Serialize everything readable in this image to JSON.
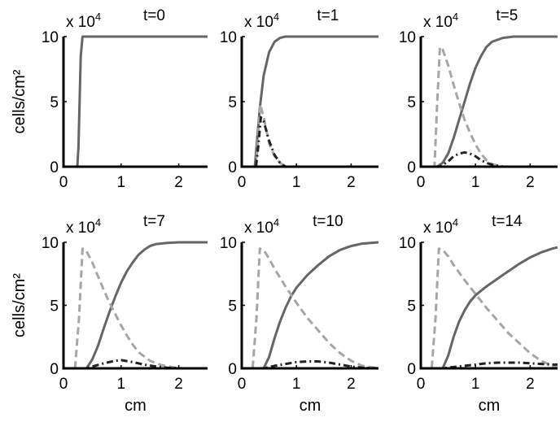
{
  "chart_data": [
    {
      "type": "line",
      "title": "t=0",
      "xlabel": "",
      "ylabel": "cells/cm²",
      "xlim": [
        0,
        2.5
      ],
      "ylim": [
        0,
        10
      ],
      "y_multiplier": "x 10^4",
      "xticks": [
        0,
        1,
        2
      ],
      "yticks": [
        0,
        5,
        10
      ],
      "series": [
        {
          "style": "solid",
          "color": "#666666",
          "x": [
            0,
            0.24,
            0.26,
            0.28,
            0.3,
            0.33,
            0.5,
            1,
            2,
            2.5
          ],
          "y": [
            0,
            0,
            1.5,
            5,
            8.5,
            10,
            10,
            10,
            10,
            10
          ]
        },
        {
          "style": "dashed",
          "color": "#a6a6a6",
          "x": [
            0,
            2.5
          ],
          "y": [
            0,
            0
          ]
        },
        {
          "style": "dashdot",
          "color": "#222222",
          "x": [
            0,
            2.5
          ],
          "y": [
            0,
            0
          ]
        }
      ]
    },
    {
      "type": "line",
      "title": "t=1",
      "xlabel": "",
      "ylabel": "",
      "xlim": [
        0,
        2.5
      ],
      "ylim": [
        0,
        10
      ],
      "y_multiplier": "x 10^4",
      "xticks": [
        0,
        1,
        2
      ],
      "yticks": [
        0,
        5,
        10
      ],
      "series": [
        {
          "style": "solid",
          "color": "#666666",
          "x": [
            0,
            0.24,
            0.28,
            0.33,
            0.4,
            0.5,
            0.6,
            0.7,
            0.8,
            1,
            2,
            2.5
          ],
          "y": [
            0,
            0,
            2,
            4.5,
            7,
            8.8,
            9.6,
            9.9,
            10,
            10,
            10,
            10
          ]
        },
        {
          "style": "dashed",
          "color": "#a6a6a6",
          "x": [
            0,
            0.26,
            0.3,
            0.34,
            0.4,
            0.5,
            0.6,
            0.7,
            0.8,
            2.5
          ],
          "y": [
            0,
            0,
            2.5,
            4.8,
            3.8,
            1.8,
            0.8,
            0.3,
            0,
            0
          ]
        },
        {
          "style": "dashdot",
          "color": "#222222",
          "x": [
            0,
            0.26,
            0.3,
            0.35,
            0.4,
            0.5,
            0.6,
            0.7,
            0.8,
            2.5
          ],
          "y": [
            0,
            0,
            1.5,
            3.8,
            3.5,
            2,
            0.9,
            0.3,
            0,
            0
          ]
        }
      ]
    },
    {
      "type": "line",
      "title": "t=5",
      "xlabel": "",
      "ylabel": "",
      "xlim": [
        0,
        2.5
      ],
      "ylim": [
        0,
        10
      ],
      "y_multiplier": "x 10^4",
      "xticks": [
        0,
        1,
        2
      ],
      "yticks": [
        0,
        5,
        10
      ],
      "series": [
        {
          "style": "solid",
          "color": "#666666",
          "x": [
            0,
            0.3,
            0.4,
            0.5,
            0.6,
            0.7,
            0.8,
            0.9,
            1.0,
            1.1,
            1.2,
            1.3,
            1.5,
            1.7,
            2.0,
            2.5
          ],
          "y": [
            0,
            0,
            0.3,
            1.0,
            2.2,
            3.6,
            5.0,
            6.4,
            7.6,
            8.5,
            9.2,
            9.6,
            9.9,
            10,
            10,
            10
          ]
        },
        {
          "style": "dashed",
          "color": "#a6a6a6",
          "x": [
            0,
            0.25,
            0.3,
            0.35,
            0.4,
            0.5,
            0.6,
            0.7,
            0.8,
            0.9,
            1.0,
            1.1,
            1.2,
            1.3,
            1.5,
            2.5
          ],
          "y": [
            0,
            0,
            5,
            9.2,
            9.0,
            7.8,
            6.3,
            4.9,
            3.6,
            2.6,
            1.7,
            1.0,
            0.5,
            0.2,
            0,
            0
          ]
        },
        {
          "style": "dashdot",
          "color": "#222222",
          "x": [
            0,
            0.35,
            0.5,
            0.6,
            0.7,
            0.8,
            0.9,
            1.0,
            1.1,
            1.2,
            1.3,
            1.5,
            2.5
          ],
          "y": [
            0,
            0,
            0.4,
            0.8,
            1.0,
            1.1,
            1.0,
            0.8,
            0.5,
            0.3,
            0.15,
            0,
            0
          ]
        }
      ]
    },
    {
      "type": "line",
      "title": "t=7",
      "xlabel": "cm",
      "ylabel": "cells/cm²",
      "xlim": [
        0,
        2.5
      ],
      "ylim": [
        0,
        10
      ],
      "y_multiplier": "x 10^4",
      "xticks": [
        0,
        1,
        2
      ],
      "yticks": [
        0,
        5,
        10
      ],
      "series": [
        {
          "style": "solid",
          "color": "#666666",
          "x": [
            0,
            0.4,
            0.5,
            0.6,
            0.7,
            0.8,
            0.9,
            1.0,
            1.1,
            1.2,
            1.3,
            1.4,
            1.5,
            1.6,
            1.8,
            2.0,
            2.5
          ],
          "y": [
            0,
            0,
            0.7,
            1.8,
            3.2,
            4.5,
            5.7,
            6.8,
            7.7,
            8.4,
            9.0,
            9.4,
            9.7,
            9.85,
            9.95,
            10,
            10
          ]
        },
        {
          "style": "dashed",
          "color": "#a6a6a6",
          "x": [
            0,
            0.2,
            0.27,
            0.33,
            0.4,
            0.5,
            0.6,
            0.7,
            0.8,
            0.9,
            1.0,
            1.1,
            1.2,
            1.3,
            1.5,
            1.7,
            2.0,
            2.5
          ],
          "y": [
            0,
            0,
            4,
            9.5,
            9.3,
            8.4,
            7.3,
            6.2,
            5.2,
            4.3,
            3.4,
            2.6,
            1.9,
            1.3,
            0.6,
            0.25,
            0,
            0
          ]
        },
        {
          "style": "dashdot",
          "color": "#222222",
          "x": [
            0,
            0.4,
            0.5,
            0.7,
            0.9,
            1.0,
            1.2,
            1.4,
            1.6,
            1.8,
            2.0,
            2.5
          ],
          "y": [
            0,
            0,
            0.15,
            0.4,
            0.6,
            0.65,
            0.5,
            0.3,
            0.15,
            0.05,
            0,
            0
          ]
        }
      ]
    },
    {
      "type": "line",
      "title": "t=10",
      "xlabel": "cm",
      "ylabel": "",
      "xlim": [
        0,
        2.5
      ],
      "ylim": [
        0,
        10
      ],
      "y_multiplier": "x 10^4",
      "xticks": [
        0,
        1,
        2
      ],
      "yticks": [
        0,
        5,
        10
      ],
      "series": [
        {
          "style": "solid",
          "color": "#666666",
          "x": [
            0,
            0.4,
            0.5,
            0.6,
            0.7,
            0.8,
            0.9,
            1.0,
            1.2,
            1.4,
            1.6,
            1.8,
            2.0,
            2.2,
            2.5
          ],
          "y": [
            0,
            0,
            0.9,
            2.4,
            3.7,
            4.8,
            5.7,
            6.4,
            7.4,
            8.2,
            8.9,
            9.4,
            9.7,
            9.9,
            10
          ]
        },
        {
          "style": "dashed",
          "color": "#a6a6a6",
          "x": [
            0,
            0.2,
            0.27,
            0.33,
            0.4,
            0.5,
            0.6,
            0.8,
            1.0,
            1.2,
            1.4,
            1.6,
            1.8,
            2.0,
            2.2,
            2.5
          ],
          "y": [
            0,
            0,
            4,
            9.5,
            9.4,
            8.7,
            7.9,
            6.5,
            5.2,
            4.0,
            3.0,
            2.0,
            1.2,
            0.6,
            0.2,
            0
          ]
        },
        {
          "style": "dashdot",
          "color": "#222222",
          "x": [
            0,
            0.4,
            0.6,
            0.8,
            1.0,
            1.2,
            1.4,
            1.6,
            1.8,
            2.0,
            2.2,
            2.5
          ],
          "y": [
            0,
            0,
            0.2,
            0.35,
            0.5,
            0.55,
            0.55,
            0.45,
            0.3,
            0.15,
            0.05,
            0
          ]
        }
      ]
    },
    {
      "type": "line",
      "title": "t=14",
      "xlabel": "cm",
      "ylabel": "",
      "xlim": [
        0,
        2.5
      ],
      "ylim": [
        0,
        10
      ],
      "y_multiplier": "x 10^4",
      "xticks": [
        0,
        1,
        2
      ],
      "yticks": [
        0,
        5,
        10
      ],
      "series": [
        {
          "style": "solid",
          "color": "#666666",
          "x": [
            0,
            0.4,
            0.5,
            0.6,
            0.7,
            0.8,
            0.9,
            1.0,
            1.2,
            1.4,
            1.6,
            1.8,
            2.0,
            2.2,
            2.4,
            2.5
          ],
          "y": [
            0,
            0,
            1.0,
            2.5,
            3.7,
            4.6,
            5.3,
            5.8,
            6.5,
            7.1,
            7.7,
            8.3,
            8.8,
            9.2,
            9.5,
            9.6
          ]
        },
        {
          "style": "dashed",
          "color": "#a6a6a6",
          "x": [
            0,
            0.2,
            0.27,
            0.33,
            0.4,
            0.5,
            0.6,
            0.8,
            1.0,
            1.2,
            1.4,
            1.6,
            1.8,
            2.0,
            2.2,
            2.4,
            2.5
          ],
          "y": [
            0,
            0,
            4,
            9.5,
            9.4,
            8.9,
            8.2,
            7.0,
            5.9,
            4.8,
            3.8,
            2.8,
            2.0,
            1.2,
            0.6,
            0.2,
            0.1
          ]
        },
        {
          "style": "dashdot",
          "color": "#222222",
          "x": [
            0,
            0.4,
            0.6,
            0.8,
            1.0,
            1.2,
            1.4,
            1.6,
            1.8,
            2.0,
            2.2,
            2.4,
            2.5
          ],
          "y": [
            0,
            0,
            0.1,
            0.2,
            0.3,
            0.4,
            0.45,
            0.45,
            0.45,
            0.4,
            0.35,
            0.3,
            0.3
          ]
        }
      ]
    }
  ]
}
